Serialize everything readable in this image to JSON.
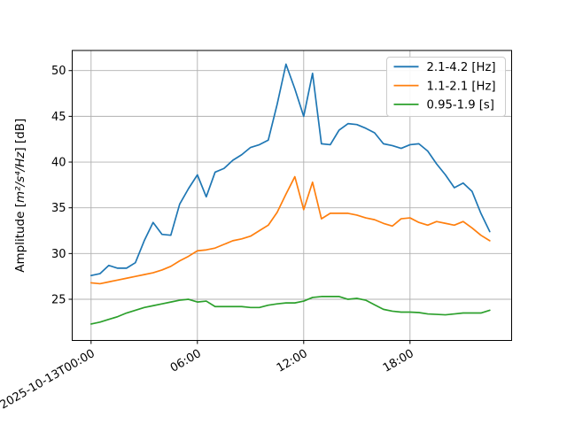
{
  "figure": {
    "background": "#ffffff",
    "ylabel_parts": [
      {
        "text": "Amplitude [",
        "italic": false
      },
      {
        "text": "m²/s⁴/Hz",
        "italic": true
      },
      {
        "text": "] [dB]",
        "italic": false
      }
    ]
  },
  "chart_data": {
    "type": "line",
    "title": "",
    "xlabel": "",
    "ylabel": "Amplitude [m²/s⁴/Hz] [dB]",
    "grid": true,
    "legend_position": "upper right",
    "x_start_label": "2025-10-13T00:00",
    "x_interval_minutes": 30,
    "times": [
      "00:00",
      "00:30",
      "01:00",
      "01:30",
      "02:00",
      "02:30",
      "03:00",
      "03:30",
      "04:00",
      "04:30",
      "05:00",
      "05:30",
      "06:00",
      "06:30",
      "07:00",
      "07:30",
      "08:00",
      "08:30",
      "09:00",
      "09:30",
      "10:00",
      "10:30",
      "11:00",
      "11:30",
      "12:00",
      "12:30",
      "13:00",
      "13:30",
      "14:00",
      "14:30",
      "15:00",
      "15:30",
      "16:00",
      "16:30",
      "17:00",
      "17:30",
      "18:00",
      "18:30",
      "19:00",
      "19:30",
      "20:00",
      "20:30",
      "21:00",
      "21:30",
      "22:00",
      "22:30"
    ],
    "series": [
      {
        "name": "2.1-4.2 [Hz]",
        "color": "#1f77b4",
        "values": [
          27.6,
          27.8,
          28.7,
          28.4,
          28.4,
          29.0,
          31.4,
          33.4,
          32.1,
          32.0,
          35.4,
          37.1,
          38.6,
          36.2,
          38.9,
          39.3,
          40.2,
          40.8,
          41.6,
          41.9,
          42.4,
          46.3,
          50.7,
          48.0,
          45.0,
          49.7,
          42.0,
          41.9,
          43.5,
          44.2,
          44.1,
          43.7,
          43.2,
          42.0,
          41.8,
          41.5,
          41.9,
          42.0,
          41.2,
          39.8,
          38.6,
          37.2,
          37.7,
          36.8,
          34.4,
          32.4
        ]
      },
      {
        "name": "1.1-2.1 [Hz]",
        "color": "#ff7f0e",
        "values": [
          26.8,
          26.7,
          26.9,
          27.1,
          27.3,
          27.5,
          27.7,
          27.9,
          28.2,
          28.6,
          29.2,
          29.7,
          30.3,
          30.4,
          30.6,
          31.0,
          31.4,
          31.6,
          31.9,
          32.5,
          33.1,
          34.5,
          36.5,
          38.4,
          34.8,
          37.8,
          33.8,
          34.4,
          34.4,
          34.4,
          34.2,
          33.9,
          33.7,
          33.3,
          33.0,
          33.8,
          33.9,
          33.4,
          33.1,
          33.5,
          33.3,
          33.1,
          33.5,
          32.8,
          32.0,
          31.4
        ]
      },
      {
        "name": "0.95-1.9 [s]",
        "color": "#2ca02c",
        "values": [
          22.3,
          22.5,
          22.8,
          23.1,
          23.5,
          23.8,
          24.1,
          24.3,
          24.5,
          24.7,
          24.9,
          25.0,
          24.7,
          24.8,
          24.2,
          24.2,
          24.2,
          24.2,
          24.1,
          24.1,
          24.35,
          24.5,
          24.6,
          24.6,
          24.8,
          25.2,
          25.3,
          25.3,
          25.3,
          25.0,
          25.1,
          24.9,
          24.4,
          23.9,
          23.7,
          23.6,
          23.6,
          23.55,
          23.4,
          23.35,
          23.3,
          23.4,
          23.5,
          23.5,
          23.5,
          23.8
        ]
      }
    ],
    "yticks": [
      25,
      30,
      35,
      40,
      45,
      50
    ],
    "ylim": [
      20.5,
      52.2
    ],
    "xticks": [
      {
        "hour": 0,
        "label": "2025-10-13T00:00"
      },
      {
        "hour": 6,
        "label": "06:00"
      },
      {
        "hour": 12,
        "label": "12:00"
      },
      {
        "hour": 18,
        "label": "18:00"
      }
    ],
    "xlim_hours": [
      -1.065,
      23.735
    ],
    "legend": [
      {
        "label": "2.1-4.2 [Hz]",
        "color": "#1f77b4"
      },
      {
        "label": "1.1-2.1 [Hz]",
        "color": "#ff7f0e"
      },
      {
        "label": "0.95-1.9 [s]",
        "color": "#2ca02c"
      }
    ],
    "colors": {
      "grid": "#b0b0b0",
      "spine": "#000000",
      "legend_border": "#cccccc"
    }
  }
}
